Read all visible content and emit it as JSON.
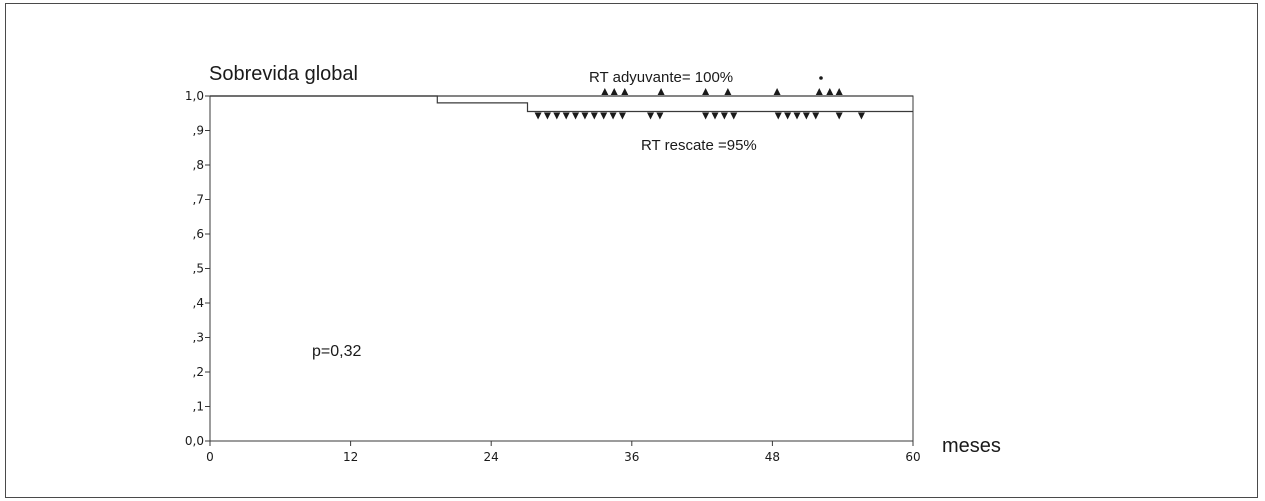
{
  "chart_data": {
    "type": "line",
    "title": "Sobrevida global",
    "xlabel": "meses",
    "ylabel": "",
    "xlim": [
      0,
      60
    ],
    "ylim": [
      0,
      1.0
    ],
    "x_ticks": [
      0,
      12,
      24,
      36,
      48,
      60
    ],
    "x_tick_labels": [
      "0",
      "12",
      "24",
      "36",
      "48",
      "60"
    ],
    "y_ticks": [
      0,
      0.1,
      0.2,
      0.3,
      0.4,
      0.5,
      0.6,
      0.7,
      0.8,
      0.9,
      1.0
    ],
    "y_tick_labels": [
      "0,0",
      ",1",
      ",2",
      ",3",
      ",4",
      ",5",
      ",6",
      ",7",
      ",8",
      ",9",
      "1,0"
    ],
    "grid": false,
    "colors": {
      "line": "#3a3a3a",
      "frame": "#4a4a4a",
      "text": "#1a1a1a"
    },
    "series": [
      {
        "name": "RT adyuvante",
        "marker": "triangle-up",
        "steps": [
          [
            0,
            1.0
          ],
          [
            60,
            1.0
          ]
        ],
        "censored_x": [
          33.7,
          34.5,
          35.4,
          38.5,
          42.3,
          44.2,
          48.4,
          52.0,
          52.9,
          53.7
        ]
      },
      {
        "name": "RT rescate",
        "marker": "triangle-down",
        "steps": [
          [
            0,
            1.0
          ],
          [
            19.4,
            1.0
          ],
          [
            19.4,
            0.98
          ],
          [
            27.1,
            0.98
          ],
          [
            27.1,
            0.955
          ],
          [
            60,
            0.955
          ]
        ],
        "censored_x": [
          28.0,
          28.8,
          29.6,
          30.4,
          31.2,
          32.0,
          32.8,
          33.6,
          34.4,
          35.2,
          37.6,
          38.4,
          42.3,
          43.1,
          43.9,
          44.7,
          48.5,
          49.3,
          50.1,
          50.9,
          51.7,
          53.7,
          55.6
        ]
      }
    ],
    "annotations": {
      "adyuvante": "RT adyuvante= 100%",
      "rescate": "RT rescate =95%",
      "pvalue": "p=0,32"
    }
  }
}
